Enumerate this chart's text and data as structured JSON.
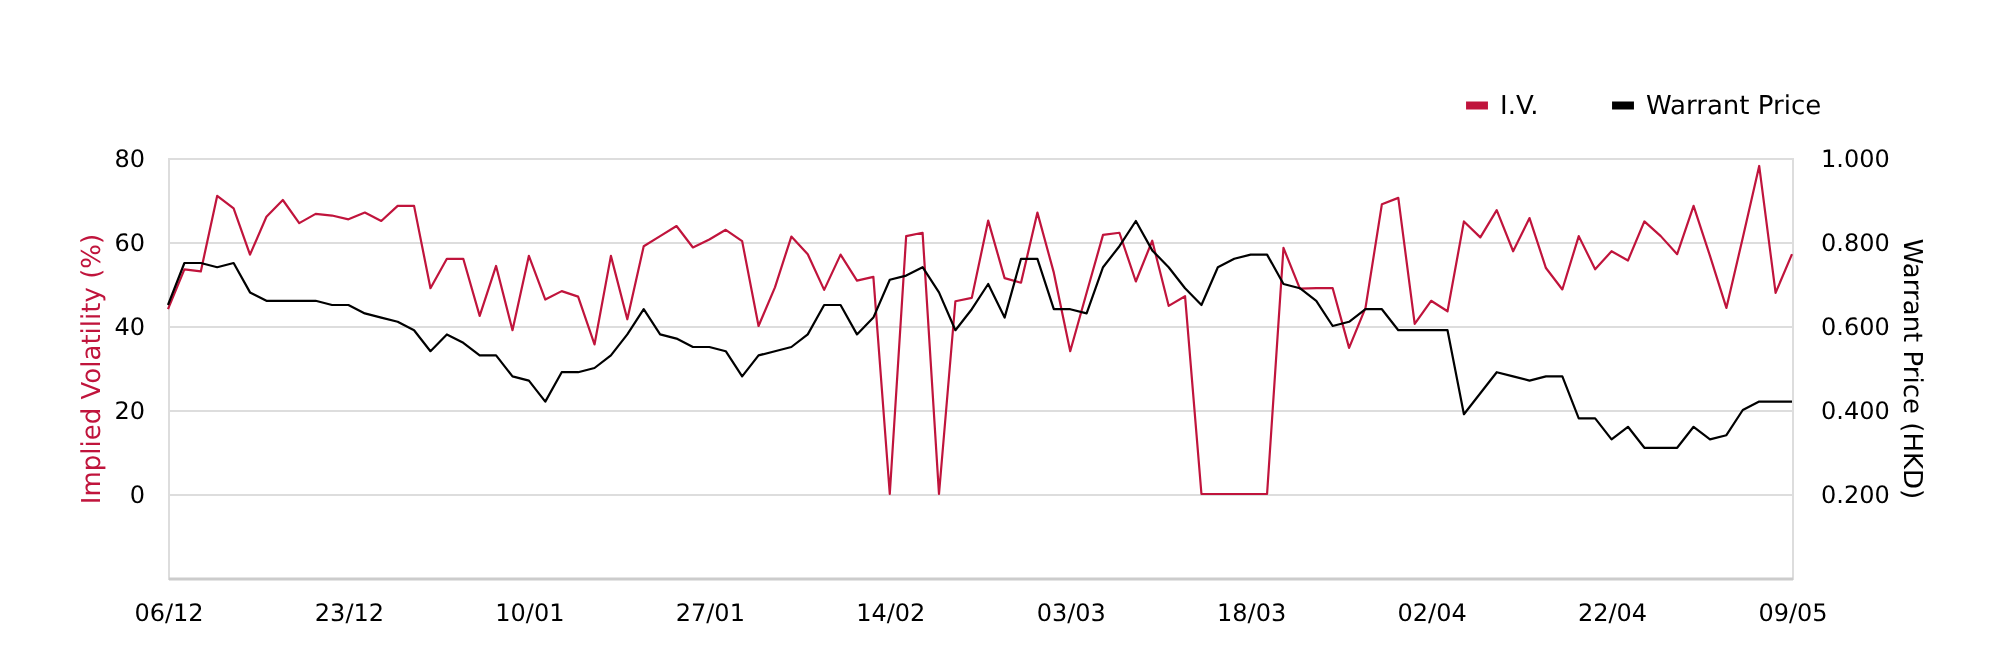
{
  "chart_data": {
    "type": "line",
    "ylabel": "Implied Volatility (%)",
    "y2label": "Warrant Price (HKD)",
    "categories": [
      "06/12",
      null,
      null,
      null,
      null,
      null,
      null,
      null,
      null,
      null,
      null,
      "23/12",
      null,
      null,
      null,
      null,
      null,
      null,
      null,
      null,
      null,
      null,
      "10/01",
      null,
      null,
      null,
      null,
      null,
      null,
      null,
      null,
      null,
      null,
      "27/01",
      null,
      null,
      null,
      null,
      null,
      null,
      null,
      null,
      null,
      null,
      "14/02",
      null,
      null,
      null,
      null,
      null,
      null,
      null,
      null,
      null,
      null,
      "03/03",
      null,
      null,
      null,
      null,
      null,
      null,
      null,
      null,
      null,
      null,
      "18/03",
      null,
      null,
      null,
      null,
      null,
      null,
      null,
      null,
      null,
      null,
      "02/04",
      null,
      null,
      null,
      null,
      null,
      null,
      null,
      null,
      null,
      null,
      "22/04",
      null,
      null,
      null,
      null,
      null,
      null,
      null,
      null,
      null,
      null,
      "09/05"
    ],
    "series": [
      {
        "name": "I.V.",
        "color": "#c0143c",
        "values": [
          44,
          53.5,
          53,
          71,
          68,
          57,
          66,
          70,
          64.5,
          66.7,
          66.3,
          65.4,
          67,
          65,
          68.6,
          68.6,
          49,
          56,
          56,
          42.4,
          54.3,
          39,
          56.7,
          46.3,
          48.3,
          47,
          35.6,
          56.7,
          41.6,
          59,
          61.4,
          63.8,
          58.7,
          60.6,
          62.9,
          60.2,
          40,
          49.2,
          61.3,
          57.1,
          48.6,
          57,
          50.8,
          51.7,
          0,
          61.4,
          62.2,
          0,
          45.9,
          46.7,
          65.1,
          51.4,
          50.3,
          67,
          52.7,
          34,
          47.9,
          61.7,
          62.2,
          50.6,
          60.3,
          44.8,
          47.1,
          0,
          0,
          0,
          0,
          0,
          58.6,
          48.9,
          49,
          49,
          34.8,
          44.3,
          69,
          70.5,
          40.5,
          46,
          43.5,
          64.9,
          61.1,
          67.6,
          57.8,
          65.7,
          53.8,
          48.7,
          61.4,
          53.5,
          57.8,
          55.6,
          64.9,
          61.4,
          57.1,
          68.6,
          56.7,
          44.3,
          61,
          78.1,
          47.9,
          57.1
        ]
      },
      {
        "name": "Warrant Price",
        "color": "#000000",
        "axis": "y2",
        "values": [
          0.65,
          0.75,
          0.75,
          0.74,
          0.75,
          0.68,
          0.66,
          0.66,
          0.66,
          0.66,
          0.65,
          0.65,
          0.63,
          0.62,
          0.61,
          0.59,
          0.54,
          0.58,
          0.56,
          0.53,
          0.53,
          0.48,
          0.47,
          0.42,
          0.49,
          0.49,
          0.5,
          0.53,
          0.58,
          0.64,
          0.58,
          0.57,
          0.55,
          0.55,
          0.54,
          0.48,
          0.53,
          0.54,
          0.55,
          0.58,
          0.65,
          0.65,
          0.58,
          0.62,
          0.71,
          0.72,
          0.74,
          0.68,
          0.59,
          0.64,
          0.7,
          0.62,
          0.76,
          0.76,
          0.64,
          0.64,
          0.63,
          0.74,
          0.79,
          0.85,
          0.78,
          0.74,
          0.69,
          0.65,
          0.74,
          0.76,
          0.77,
          0.77,
          0.7,
          0.69,
          0.66,
          0.6,
          0.61,
          0.64,
          0.64,
          0.59,
          0.59,
          0.59,
          0.59,
          0.39,
          0.44,
          0.49,
          0.48,
          0.47,
          0.48,
          0.48,
          0.38,
          0.38,
          0.33,
          0.36,
          0.31,
          0.31,
          0.31,
          0.36,
          0.33,
          0.34,
          0.4,
          0.42,
          0.42,
          0.42
        ]
      }
    ],
    "ylim": [
      -20,
      80
    ],
    "yticks": [
      0,
      20,
      40,
      60,
      80
    ],
    "y2lim": [
      0,
      1
    ],
    "y2ticks": [
      {
        "value": 0.2,
        "label": "0.200"
      },
      {
        "value": 0.4,
        "label": "0.400"
      },
      {
        "value": 0.6,
        "label": "0.600"
      },
      {
        "value": 0.8,
        "label": "0.800"
      },
      {
        "value": 1,
        "label": "1.000"
      }
    ],
    "grid": "y",
    "legend": "top right",
    "marker": "none",
    "line_style": "solid"
  }
}
